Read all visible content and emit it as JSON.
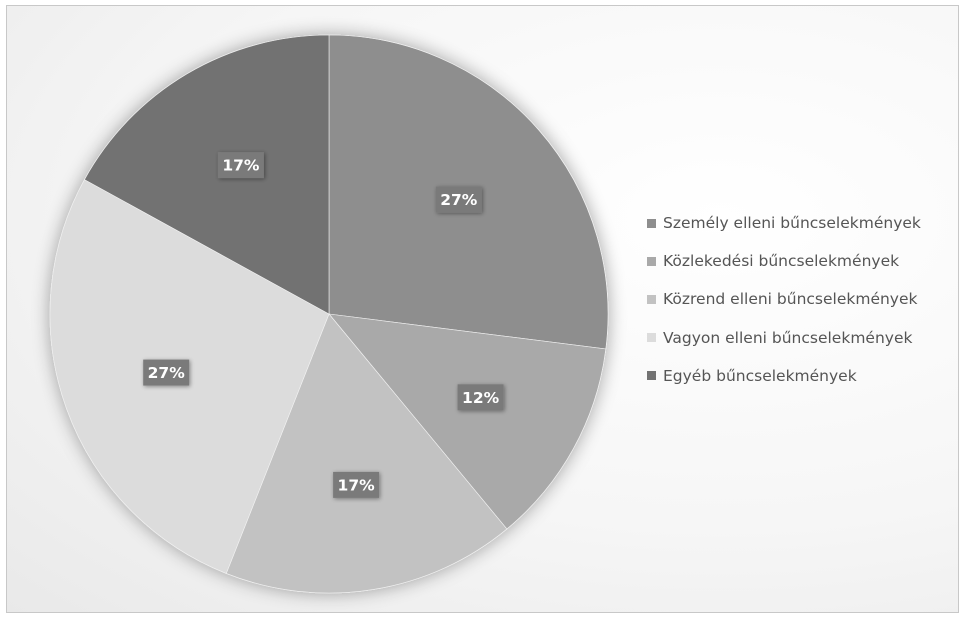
{
  "chart_data": {
    "type": "pie",
    "title": "",
    "categories": [
      "Személy elleni bűncselekmények",
      "Közlekedési bűncselekmények",
      "Közrend elleni bűncselekmények",
      "Vagyon elleni bűncselekmények",
      "Egyéb bűncselekmények"
    ],
    "values": [
      27,
      12,
      17,
      27,
      17
    ],
    "data_labels": [
      "27%",
      "12%",
      "17%",
      "27%",
      "17%"
    ],
    "colors": [
      "#8e8e8e",
      "#a9a9a9",
      "#c2c2c2",
      "#dcdcdc",
      "#727272"
    ],
    "label_color": "#7a7a7a",
    "legend": "right",
    "start_angle": "12 o'clock",
    "direction": "clockwise"
  }
}
